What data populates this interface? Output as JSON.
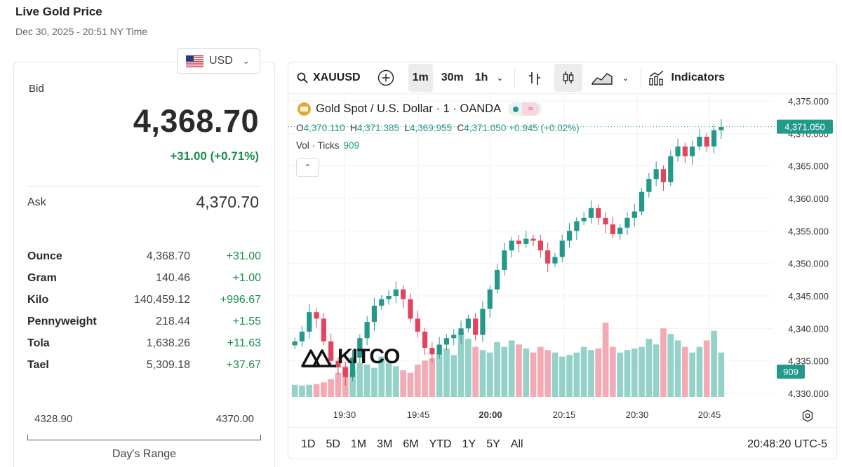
{
  "page": {
    "title": "Live Gold Price",
    "subtitle": "Dec 30, 2025 - 20:51 NY Time"
  },
  "currency": {
    "code": "USD",
    "flag_icon": "us-flag-icon"
  },
  "quote": {
    "bid_label": "Bid",
    "bid": "4,368.70",
    "change": "+31.00 (+0.71%)",
    "ask_label": "Ask",
    "ask": "4,370.70"
  },
  "units": [
    {
      "name": "Ounce",
      "price": "4,368.70",
      "change": "+31.00"
    },
    {
      "name": "Gram",
      "price": "140.46",
      "change": "+1.00"
    },
    {
      "name": "Kilo",
      "price": "140,459.12",
      "change": "+996.67"
    },
    {
      "name": "Pennyweight",
      "price": "218.44",
      "change": "+1.55"
    },
    {
      "name": "Tola",
      "price": "1,638.26",
      "change": "+11.63"
    },
    {
      "name": "Tael",
      "price": "5,309.18",
      "change": "+37.67"
    }
  ],
  "day_range": {
    "low": "4328.90",
    "high": "4370.00",
    "label": "Day's Range"
  },
  "toolbar": {
    "symbol": "XAUUSD",
    "timeframes": [
      "1m",
      "30m",
      "1h"
    ],
    "active_timeframe": "1m",
    "indicators_label": "Indicators"
  },
  "legend": {
    "title": "Gold Spot / U.S. Dollar · 1 · OANDA",
    "o": "4,370.110",
    "h": "4,371.385",
    "l": "4,369.955",
    "c": "4,371.050",
    "chg": "+0.945 (+0.02%)",
    "vol_label": "Vol · Ticks",
    "vol_value": "909"
  },
  "logo_text": "KITCO",
  "ranges": [
    "1D",
    "5D",
    "1M",
    "3M",
    "6M",
    "YTD",
    "1Y",
    "5Y",
    "All"
  ],
  "clock": "20:48:20 UTC-5",
  "colors": {
    "up": "#22998a",
    "down": "#e0455d",
    "up_vol": "#94d1c8",
    "down_vol": "#f4aab4",
    "positive_text": "#1a8f4c"
  },
  "chart_data": {
    "type": "candlestick",
    "price_ticks": [
      "4,375.000",
      "4,370.000",
      "4,365.000",
      "4,360.000",
      "4,355.000",
      "4,350.000",
      "4,345.000",
      "4,340.000",
      "4,335.000",
      "4,330.000"
    ],
    "time_ticks": [
      "19:30",
      "19:45",
      "20:00",
      "20:15",
      "20:30",
      "20:45"
    ],
    "y_range": [
      4328,
      4376
    ],
    "last_price_label": "4,371.050",
    "last_volume_label": "909",
    "approx_close_path": [
      4338.0,
      4339.5,
      4342.5,
      4341.5,
      4338.0,
      4335.0,
      4334.0,
      4332.5,
      4335.5,
      4338.5,
      4341.0,
      4343.5,
      4344.5,
      4345.0,
      4346.0,
      4344.5,
      4341.5,
      4339.5,
      4337.0,
      4336.0,
      4337.5,
      4338.5,
      4339.0,
      4340.0,
      4341.5,
      4339.0,
      4343.0,
      4346.0,
      4349.0,
      4352.0,
      4353.5,
      4353.0,
      4353.8,
      4353.5,
      4352.0,
      4350.0,
      4351.0,
      4353.5,
      4355.0,
      4356.5,
      4357.0,
      4358.5,
      4357.0,
      4356.0,
      4354.5,
      4355.5,
      4357.0,
      4358.0,
      4361.0,
      4363.0,
      4364.5,
      4362.5,
      4366.5,
      4368.0,
      4366.5,
      4368.0,
      4369.5,
      4368.0,
      4370.5,
      4371.0
    ],
    "volume_path": [
      0.15,
      0.14,
      0.15,
      0.16,
      0.18,
      0.22,
      0.3,
      0.38,
      0.33,
      0.42,
      0.4,
      0.36,
      0.5,
      0.42,
      0.38,
      0.33,
      0.3,
      0.4,
      0.45,
      0.48,
      0.55,
      0.6,
      0.52,
      0.8,
      0.72,
      0.62,
      0.58,
      0.55,
      0.68,
      0.62,
      0.7,
      0.65,
      0.6,
      0.55,
      0.62,
      0.58,
      0.55,
      0.5,
      0.52,
      0.55,
      0.62,
      0.58,
      0.6,
      0.92,
      0.62,
      0.55,
      0.58,
      0.6,
      0.62,
      0.72,
      0.65,
      0.85,
      0.78,
      0.7,
      0.62,
      0.55,
      0.62,
      0.7,
      0.82,
      0.55
    ]
  }
}
